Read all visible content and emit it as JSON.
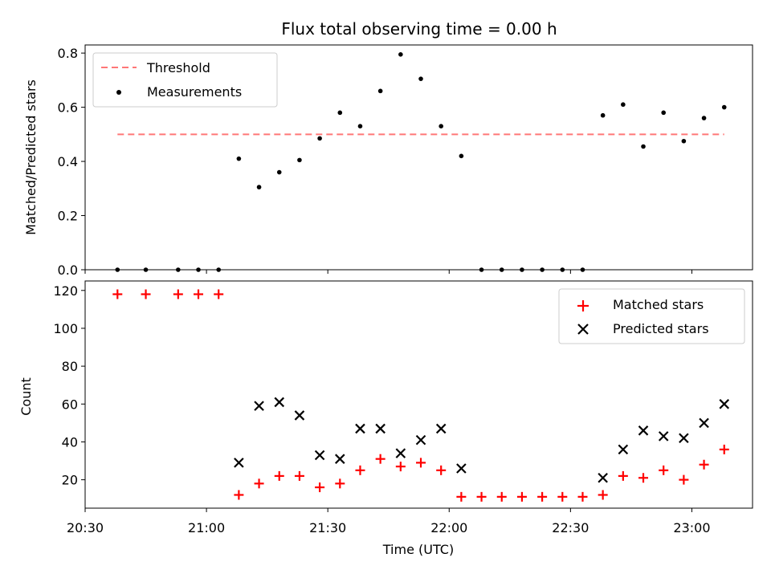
{
  "chart_data": [
    {
      "type": "scatter",
      "title": "Flux total observing time = 0.00 h",
      "ylabel": "Matched/Predicted stars",
      "xlabel": "",
      "xlim": [
        "20:30",
        "23:15"
      ],
      "ylim": [
        0,
        0.83
      ],
      "yticks": [
        0.0,
        0.2,
        0.4,
        0.6,
        0.8
      ],
      "ytick_labels": [
        "0.0",
        "0.2",
        "0.4",
        "0.6",
        "0.8"
      ],
      "legend_position": "top-left",
      "threshold": {
        "name": "Threshold",
        "value": 0.5,
        "x_start": "20:38",
        "x_end": "23:08",
        "color": "#ff7777",
        "style": "dashed"
      },
      "series": [
        {
          "name": "Measurements",
          "color": "#000000",
          "x": [
            "20:38",
            "20:45",
            "20:53",
            "20:58",
            "21:03",
            "21:08",
            "21:13",
            "21:18",
            "21:23",
            "21:28",
            "21:33",
            "21:38",
            "21:43",
            "21:48",
            "21:53",
            "21:58",
            "22:03",
            "22:08",
            "22:13",
            "22:18",
            "22:23",
            "22:28",
            "22:33",
            "22:38",
            "22:43",
            "22:48",
            "22:53",
            "22:58",
            "23:03",
            "23:08"
          ],
          "values": [
            0,
            0,
            0,
            0,
            0,
            0.41,
            0.305,
            0.36,
            0.405,
            0.485,
            0.58,
            0.53,
            0.66,
            0.795,
            0.705,
            0.53,
            0.42,
            0,
            0,
            0,
            0,
            0,
            0,
            0.57,
            0.61,
            0.455,
            0.58,
            0.475,
            0.56,
            0.6
          ]
        }
      ]
    },
    {
      "type": "scatter",
      "title": "",
      "xlabel": "Time (UTC)",
      "ylabel": "Count",
      "xlim": [
        "20:30",
        "23:15"
      ],
      "ylim": [
        5,
        125
      ],
      "xticks": [
        "20:30",
        "21:00",
        "21:30",
        "22:00",
        "22:30",
        "23:00"
      ],
      "yticks": [
        20,
        40,
        60,
        80,
        100,
        120
      ],
      "ytick_labels": [
        "20",
        "40",
        "60",
        "80",
        "100",
        "120"
      ],
      "legend_position": "top-right",
      "series": [
        {
          "name": "Matched stars",
          "marker": "plus",
          "color": "#ff0000",
          "x": [
            "20:38",
            "20:45",
            "20:53",
            "20:58",
            "21:03",
            "21:08",
            "21:13",
            "21:18",
            "21:23",
            "21:28",
            "21:33",
            "21:38",
            "21:43",
            "21:48",
            "21:53",
            "21:58",
            "22:03",
            "22:08",
            "22:13",
            "22:18",
            "22:23",
            "22:28",
            "22:33",
            "22:38",
            "22:43",
            "22:48",
            "22:53",
            "22:58",
            "23:03",
            "23:08"
          ],
          "values": [
            118,
            118,
            118,
            118,
            118,
            12,
            18,
            22,
            22,
            16,
            18,
            25,
            31,
            27,
            29,
            25,
            11,
            11,
            11,
            11,
            11,
            11,
            11,
            12,
            22,
            21,
            25,
            20,
            28,
            36
          ]
        },
        {
          "name": "Predicted stars",
          "marker": "x",
          "color": "#000000",
          "x": [
            "21:08",
            "21:13",
            "21:18",
            "21:23",
            "21:28",
            "21:33",
            "21:38",
            "21:43",
            "21:48",
            "21:53",
            "21:58",
            "22:03",
            "22:38",
            "22:43",
            "22:48",
            "22:53",
            "22:58",
            "23:03",
            "23:08"
          ],
          "values": [
            29,
            59,
            61,
            54,
            33,
            31,
            47,
            47,
            34,
            41,
            47,
            26,
            21,
            36,
            46,
            43,
            42,
            50,
            60
          ]
        }
      ]
    }
  ]
}
